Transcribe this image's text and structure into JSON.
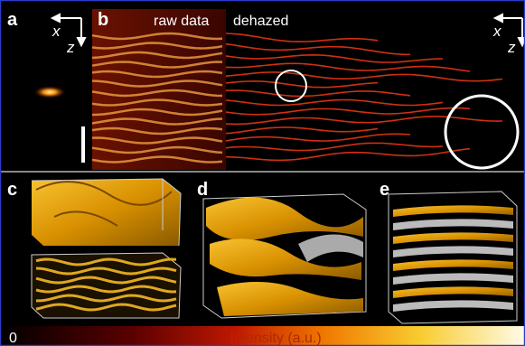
{
  "panels": {
    "a": {
      "label": "a",
      "axes": [
        "x",
        "z"
      ]
    },
    "b": {
      "label": "b",
      "left_text": "raw data",
      "right_text": "dehazed",
      "axes": [
        "x",
        "z"
      ]
    },
    "c": {
      "label": "c"
    },
    "d": {
      "label": "d"
    },
    "e": {
      "label": "e"
    }
  },
  "colorbar": {
    "min_label": "0",
    "title": "Intensity (a.u.)"
  }
}
